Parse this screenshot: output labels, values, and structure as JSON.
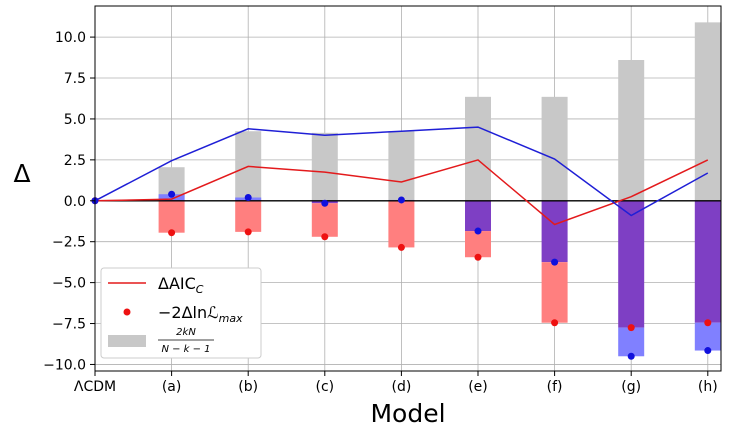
{
  "chart_data": {
    "type": "bar",
    "title": "",
    "xlabel": "Model",
    "ylabel": "Δ",
    "categories": [
      "ΛCDM",
      "(a)",
      "(b)",
      "(c)",
      "(d)",
      "(e)",
      "(f)",
      "(g)",
      "(h)"
    ],
    "ylim": [
      -10.4,
      11.9
    ],
    "yticks": [
      -10.0,
      -7.5,
      -5.0,
      -2.5,
      0.0,
      2.5,
      5.0,
      7.5,
      10.0
    ],
    "ytick_labels": [
      "−10.0",
      "−7.5",
      "−5.0",
      "−2.5",
      "0.0",
      "2.5",
      "5.0",
      "7.5",
      "10.0"
    ],
    "grid": true,
    "legend_position": "lower-left",
    "series": [
      {
        "name": "2kN/(N−k−1)",
        "legend_label": "2kN / N − k − 1",
        "kind": "bar",
        "color": "#c8c8c8",
        "values": [
          0.0,
          2.05,
          4.25,
          4.15,
          4.25,
          6.35,
          6.35,
          8.6,
          10.9
        ]
      },
      {
        "name": "−2ΔlnL_max (red)",
        "legend_label": "−2ΔlnL_max",
        "kind": "bar+points",
        "color": "#ff7f7f",
        "point_color": "#ee1111",
        "values": [
          0.0,
          -1.95,
          -1.9,
          -2.2,
          -2.85,
          -3.45,
          -7.45,
          -7.75,
          -7.45
        ]
      },
      {
        "name": "−2ΔlnL_max (blue)",
        "kind": "bar+points",
        "color": "#8080ff",
        "point_color": "#1010dd",
        "values": [
          0.0,
          0.4,
          0.2,
          -0.15,
          0.05,
          -1.85,
          -3.75,
          -9.5,
          -9.15
        ]
      },
      {
        "name": "ΔAIC_C (red)",
        "legend_label": "ΔAIC_C",
        "kind": "line",
        "color": "#e31a1c",
        "values": [
          0.0,
          0.1,
          2.1,
          1.75,
          1.15,
          2.5,
          -1.45,
          0.25,
          2.5
        ]
      },
      {
        "name": "ΔAIC_C (blue)",
        "kind": "line",
        "color": "#1f1fd6",
        "values": [
          0.0,
          2.45,
          4.4,
          4.0,
          4.25,
          4.5,
          2.55,
          -0.9,
          1.7
        ]
      }
    ],
    "overlap_color": "#7e3fc4",
    "legend": [
      {
        "label": "ΔAIC",
        "sub": "C",
        "marker": "line",
        "color": "#e31a1c"
      },
      {
        "label": "−2ΔlnℒL",
        "marker": "dot",
        "color": "#ee1111"
      },
      {
        "label_num": "2kN",
        "label_den": "N − k − 1",
        "marker": "patch",
        "color": "#c8c8c8"
      }
    ]
  }
}
